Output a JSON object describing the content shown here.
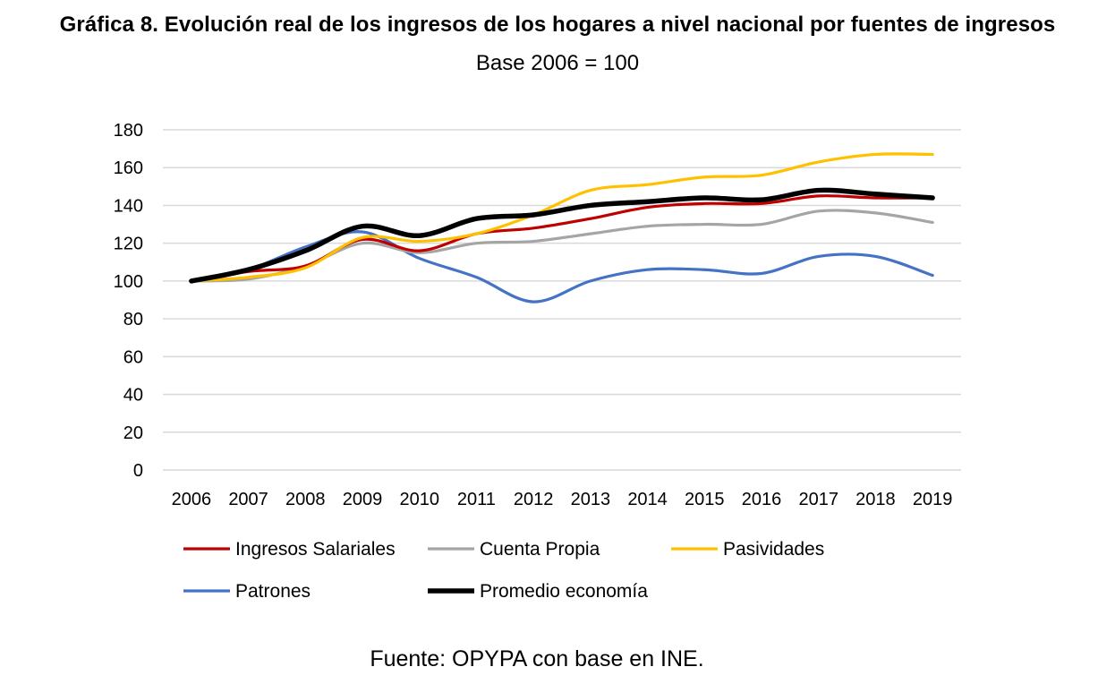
{
  "chart_data": {
    "type": "line",
    "title": "Gráfica 8. Evolución real de los ingresos de los hogares a nivel nacional por fuentes de ingresos",
    "subtitle": "Base 2006 = 100",
    "source": "Fuente: OPYPA con base en INE.",
    "xlabel": "",
    "ylabel": "",
    "ylim": [
      0,
      180
    ],
    "yticks": [
      0,
      20,
      40,
      60,
      80,
      100,
      120,
      140,
      160,
      180
    ],
    "categories": [
      "2006",
      "2007",
      "2008",
      "2009",
      "2010",
      "2011",
      "2012",
      "2013",
      "2014",
      "2015",
      "2016",
      "2017",
      "2018",
      "2019"
    ],
    "grid": true,
    "legend_position": "bottom",
    "series": [
      {
        "name": "Ingresos Salariales",
        "color": "#C00000",
        "values": [
          100,
          105,
          108,
          122,
          116,
          125,
          128,
          133,
          139,
          141,
          141,
          145,
          144,
          144
        ]
      },
      {
        "name": "Cuenta Propia",
        "color": "#A5A5A5",
        "values": [
          100,
          101,
          108,
          120,
          115,
          120,
          121,
          125,
          129,
          130,
          130,
          137,
          136,
          131
        ]
      },
      {
        "name": "Pasividades",
        "color": "#FFC000",
        "values": [
          100,
          102,
          107,
          123,
          121,
          125,
          135,
          148,
          151,
          155,
          156,
          163,
          167,
          167
        ]
      },
      {
        "name": "Patrones",
        "color": "#4472C4",
        "values": [
          100,
          106,
          118,
          126,
          112,
          102,
          89,
          100,
          106,
          106,
          104,
          113,
          113,
          103
        ]
      },
      {
        "name": "Promedio economía",
        "color": "#000000",
        "values": [
          100,
          106,
          116,
          129,
          124,
          133,
          135,
          140,
          142,
          144,
          143,
          148,
          146,
          144
        ]
      }
    ]
  }
}
